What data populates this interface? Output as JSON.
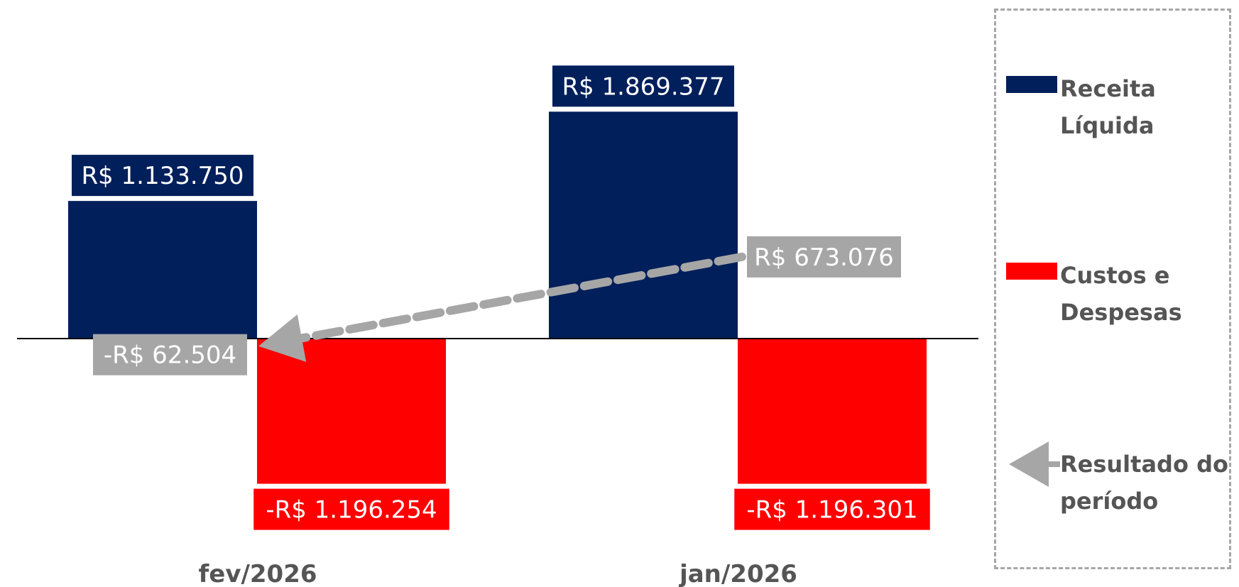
{
  "chart_data": {
    "type": "bar",
    "categories": [
      "fev/2026",
      "jan/2026"
    ],
    "series": [
      {
        "name": "Receita Líquida",
        "color": "#001F5B",
        "values": [
          1133750,
          1869377
        ],
        "labels": [
          "R$ 1.133.750",
          "R$ 1.869.377"
        ]
      },
      {
        "name": "Custos e Despesas",
        "color": "#FF0000",
        "values": [
          -1196254,
          -1196301
        ],
        "labels": [
          "-R$ 1.196.254",
          "-R$ 1.196.301"
        ]
      },
      {
        "name": "Resultado do período",
        "color": "#A6A6A6",
        "values": [
          -62504,
          673076
        ],
        "labels": [
          "-R$ 62.504",
          "R$ 673.076"
        ],
        "style": "dashed-arrow"
      }
    ],
    "ylim": [
      -1900000,
      2100000
    ],
    "grid": false,
    "legend_position": "right"
  },
  "legend": {
    "items": [
      {
        "label": "Receita Líquida",
        "swatch": "box",
        "color": "#001F5B"
      },
      {
        "label": "Custos e Despesas",
        "swatch": "box",
        "color": "#FF0000"
      },
      {
        "label": "Resultado do período",
        "swatch": "arrow",
        "color": "#A6A6A6"
      }
    ]
  }
}
